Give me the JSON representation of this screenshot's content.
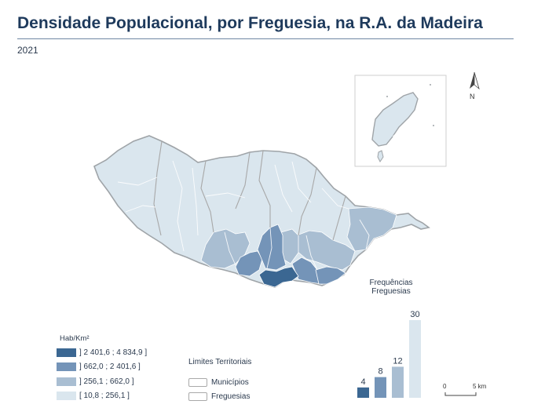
{
  "title": "Densidade Populacional, por Freguesia, na R.A. da Madeira",
  "year": "2021",
  "legend": {
    "title": "Hab/Km²",
    "classes": [
      {
        "label": "] 2 401,6 ; 4 834,9 ]",
        "color": "#3b6792"
      },
      {
        "label": "] 662,0 ; 2 401,6 ]",
        "color": "#7494b8"
      },
      {
        "label": "] 256,1 ; 662,0 ]",
        "color": "#a9bed2"
      },
      {
        "label": "[ 10,8 ; 256,1 ]",
        "color": "#dae6ee"
      }
    ]
  },
  "limits": {
    "title": "Limites Territoriais",
    "items": [
      {
        "label": "Municípios"
      },
      {
        "label": "Freguesias"
      }
    ]
  },
  "chart_data": {
    "type": "bar",
    "title": "Frequências Freguesias",
    "categories": [
      "] 2 401,6 ; 4 834,9 ]",
      "] 662,0 ; 2 401,6 ]",
      "] 256,1 ; 662,0 ]",
      "[ 10,8 ; 256,1 ]"
    ],
    "values": [
      4,
      8,
      12,
      30
    ],
    "colors": [
      "#3b6792",
      "#7494b8",
      "#a9bed2",
      "#dae6ee"
    ]
  },
  "north": "N",
  "scale": {
    "start": "0",
    "end": "5 km"
  }
}
